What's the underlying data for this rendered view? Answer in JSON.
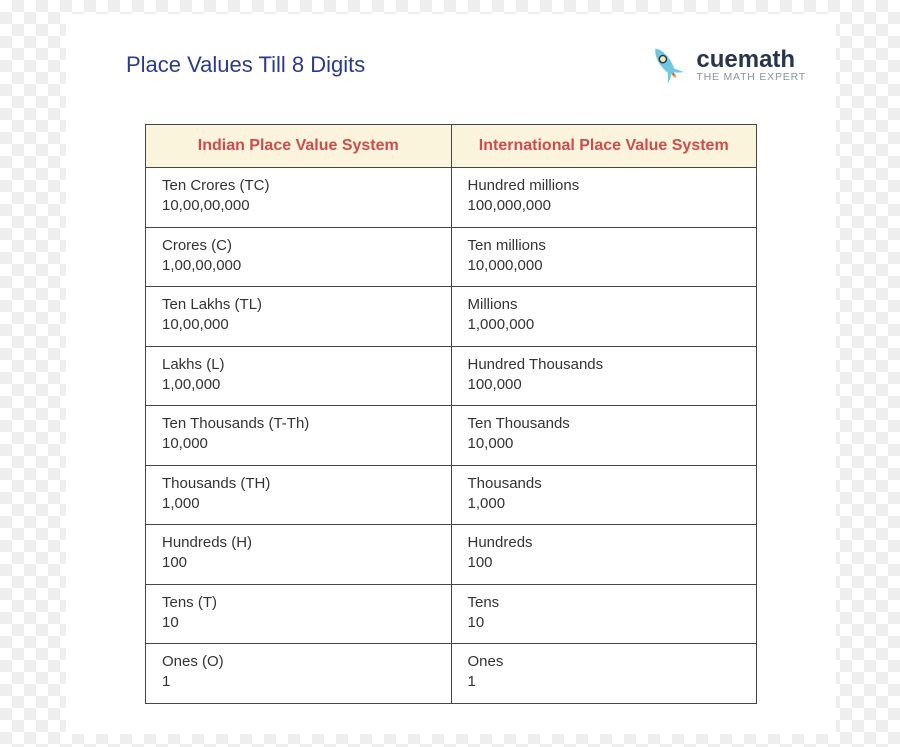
{
  "page": {
    "title": "Place Values Till 8 Digits",
    "brand_main": "cuemath",
    "brand_sub": "THE MATH EXPERT"
  },
  "colors": {
    "title_color": "#2a3b8f",
    "header_bg": "#faf4dd",
    "header_text": "#d24a4a",
    "border": "#464646",
    "rocket_body": "#6ac8e0",
    "rocket_flame": "#f9b233"
  },
  "table": {
    "type": "table",
    "columns": [
      "Indian Place Value System",
      "International Place Value System"
    ],
    "rows": [
      {
        "indian_label": "Ten Crores (TC)",
        "indian_value": "10,00,00,000",
        "intl_label": "Hundred millions",
        "intl_value": "100,000,000"
      },
      {
        "indian_label": "Crores (C)",
        "indian_value": "1,00,00,000",
        "intl_label": "Ten millions",
        "intl_value": "10,000,000"
      },
      {
        "indian_label": "Ten Lakhs (TL)",
        "indian_value": "10,00,000",
        "intl_label": "Millions",
        "intl_value": "1,000,000"
      },
      {
        "indian_label": "Lakhs (L)",
        "indian_value": "1,00,000",
        "intl_label": "Hundred Thousands",
        "intl_value": "100,000"
      },
      {
        "indian_label": "Ten Thousands (T-Th)",
        "indian_value": "10,000",
        "intl_label": "Ten Thousands",
        "intl_value": "10,000"
      },
      {
        "indian_label": "Thousands (TH)",
        "indian_value": "1,000",
        "intl_label": "Thousands",
        "intl_value": "1,000"
      },
      {
        "indian_label": "Hundreds (H)",
        "indian_value": "100",
        "intl_label": "Hundreds",
        "intl_value": "100"
      },
      {
        "indian_label": "Tens (T)",
        "indian_value": "10",
        "intl_label": "Tens",
        "intl_value": "10"
      },
      {
        "indian_label": "Ones (O)",
        "indian_value": "1",
        "intl_label": "Ones",
        "intl_value": "1"
      }
    ]
  }
}
